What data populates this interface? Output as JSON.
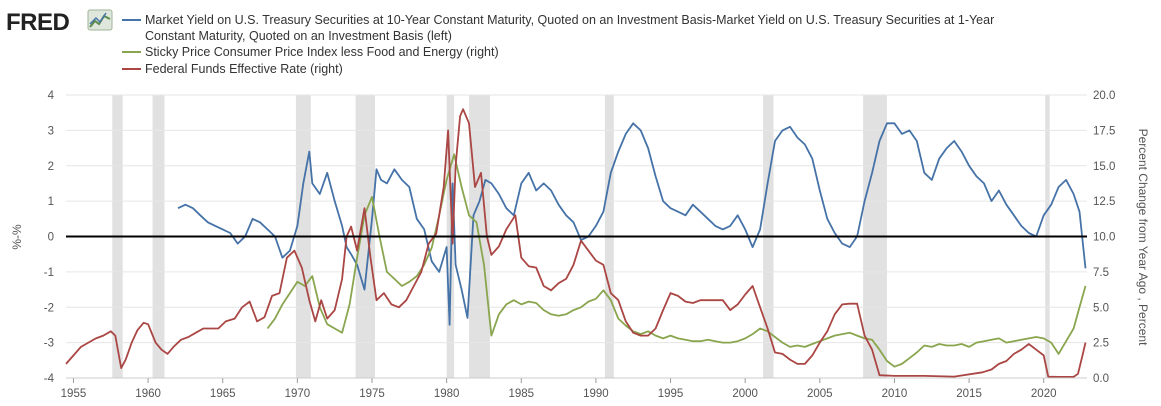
{
  "logo": {
    "text": "FRED",
    "mark": "fred-chart-logo-icon"
  },
  "colors": {
    "spread": "#4572a7",
    "sticky_cpi": "#89a54e",
    "fed_funds": "#aa4643",
    "recession": "#e1e1e1",
    "zero_line": "#000000"
  },
  "chart_data": {
    "type": "line",
    "legend": {
      "placement": "top",
      "entries": [
        {
          "key": "spread",
          "lines": [
            "Market Yield on U.S. Treasury Securities at 10-Year Constant Maturity, Quoted on an Investment Basis-Market Yield on U.S. Treasury Securities at 1-Year",
            "Constant Maturity, Quoted on an Investment Basis (left)"
          ]
        },
        {
          "key": "sticky_cpi",
          "lines": [
            "Sticky Price Consumer Price Index less Food and Energy (right)"
          ]
        },
        {
          "key": "fed_funds",
          "lines": [
            "Federal Funds Effective Rate (right)"
          ]
        }
      ]
    },
    "x_axis": {
      "range": [
        1954.5,
        2022.9
      ],
      "ticks": [
        "1955",
        "1960",
        "1965",
        "1970",
        "1975",
        "1980",
        "1985",
        "1990",
        "1995",
        "2000",
        "2005",
        "2010",
        "2015",
        "2020"
      ]
    },
    "y_left": {
      "label": "%-%",
      "range": [
        -4,
        4
      ],
      "ticks": [
        "4",
        "3",
        "2",
        "1",
        "0",
        "-1",
        "-2",
        "-3",
        "-4"
      ]
    },
    "y_right": {
      "label": "Percent Change from Year Ago , Percent",
      "range": [
        0,
        20
      ],
      "ticks": [
        "20.0",
        "17.5",
        "15.0",
        "12.5",
        "10.0",
        "7.5",
        "5.0",
        "2.5",
        "0.0"
      ]
    },
    "grid": "horizontal",
    "zero_line": 0,
    "recessions": [
      [
        1957.6,
        1958.3
      ],
      [
        1960.3,
        1961.1
      ],
      [
        1969.9,
        1970.9
      ],
      [
        1973.9,
        1975.2
      ],
      [
        1980.0,
        1980.5
      ],
      [
        1981.5,
        1982.9
      ],
      [
        1990.6,
        1991.2
      ],
      [
        2001.2,
        2001.9
      ],
      [
        2007.9,
        2009.5
      ],
      [
        2020.1,
        2020.4
      ]
    ],
    "series": [
      {
        "name": "Market Yield on U.S. Treasury Securities at 10-Year Constant Maturity, Quoted on an Investment Basis-Market Yield on U.S. Treasury Securities at 1-Year Constant Maturity, Quoted on an Investment Basis",
        "axis": "left",
        "x": [
          1962.0,
          1962.5,
          1963.0,
          1963.5,
          1964.0,
          1964.5,
          1965.0,
          1965.5,
          1966.0,
          1966.5,
          1967.0,
          1967.5,
          1968.0,
          1968.5,
          1969.0,
          1969.5,
          1970.0,
          1970.4,
          1970.8,
          1971.0,
          1971.5,
          1972.0,
          1972.5,
          1973.0,
          1973.3,
          1973.6,
          1974.0,
          1974.5,
          1975.0,
          1975.3,
          1975.6,
          1976.0,
          1976.5,
          1977.0,
          1977.5,
          1978.0,
          1978.5,
          1979.0,
          1979.5,
          1980.0,
          1980.2,
          1980.4,
          1980.6,
          1981.0,
          1981.4,
          1981.8,
          1982.2,
          1982.6,
          1983.0,
          1983.5,
          1984.0,
          1984.5,
          1985.0,
          1985.5,
          1986.0,
          1986.5,
          1987.0,
          1987.5,
          1988.0,
          1988.5,
          1989.0,
          1989.5,
          1990.0,
          1990.5,
          1991.0,
          1991.5,
          1992.0,
          1992.5,
          1993.0,
          1993.5,
          1994.0,
          1994.5,
          1995.0,
          1995.5,
          1996.0,
          1996.5,
          1997.0,
          1997.5,
          1998.0,
          1998.5,
          1999.0,
          1999.5,
          2000.0,
          2000.5,
          2001.0,
          2001.5,
          2002.0,
          2002.5,
          2003.0,
          2003.5,
          2004.0,
          2004.5,
          2005.0,
          2005.5,
          2006.0,
          2006.5,
          2007.0,
          2007.5,
          2008.0,
          2008.5,
          2009.0,
          2009.5,
          2010.0,
          2010.5,
          2011.0,
          2011.5,
          2012.0,
          2012.5,
          2013.0,
          2013.5,
          2014.0,
          2014.5,
          2015.0,
          2015.5,
          2016.0,
          2016.5,
          2017.0,
          2017.5,
          2018.0,
          2018.5,
          2019.0,
          2019.5,
          2020.0,
          2020.5,
          2021.0,
          2021.5,
          2022.0,
          2022.4,
          2022.8
        ],
        "values": [
          0.8,
          0.9,
          0.8,
          0.6,
          0.4,
          0.3,
          0.2,
          0.1,
          -0.2,
          0.0,
          0.5,
          0.4,
          0.2,
          0.0,
          -0.6,
          -0.4,
          0.3,
          1.5,
          2.4,
          1.5,
          1.2,
          1.8,
          1.0,
          0.3,
          -0.3,
          -0.5,
          -0.8,
          -1.5,
          0.5,
          1.9,
          1.6,
          1.5,
          1.9,
          1.6,
          1.4,
          0.5,
          0.2,
          -0.7,
          -1.0,
          -0.3,
          -2.5,
          1.5,
          -0.8,
          -1.5,
          -2.3,
          0.6,
          1.0,
          1.6,
          1.5,
          1.2,
          0.8,
          0.6,
          1.5,
          1.8,
          1.3,
          1.5,
          1.3,
          0.9,
          0.6,
          0.4,
          -0.1,
          0.0,
          0.3,
          0.7,
          1.8,
          2.4,
          2.9,
          3.2,
          3.0,
          2.5,
          1.7,
          1.0,
          0.8,
          0.7,
          0.6,
          0.9,
          0.7,
          0.5,
          0.3,
          0.2,
          0.3,
          0.6,
          0.2,
          -0.3,
          0.2,
          1.5,
          2.7,
          3.0,
          3.1,
          2.8,
          2.6,
          2.2,
          1.3,
          0.5,
          0.1,
          -0.2,
          -0.3,
          0.0,
          1.0,
          1.8,
          2.7,
          3.2,
          3.2,
          2.9,
          3.0,
          2.7,
          1.8,
          1.6,
          2.2,
          2.5,
          2.7,
          2.4,
          2.0,
          1.7,
          1.5,
          1.0,
          1.3,
          0.9,
          0.6,
          0.3,
          0.1,
          0.0,
          0.6,
          0.9,
          1.4,
          1.6,
          1.2,
          0.7,
          -0.9
        ]
      },
      {
        "name": "Sticky Price Consumer Price Index less Food and Energy",
        "axis": "right",
        "x": [
          1968.0,
          1968.5,
          1969.0,
          1969.5,
          1970.0,
          1970.5,
          1971.0,
          1971.5,
          1972.0,
          1972.5,
          1973.0,
          1973.5,
          1974.0,
          1974.5,
          1975.0,
          1975.5,
          1976.0,
          1976.5,
          1977.0,
          1977.5,
          1978.0,
          1978.5,
          1979.0,
          1979.5,
          1980.0,
          1980.5,
          1981.0,
          1981.5,
          1982.0,
          1982.5,
          1983.0,
          1983.5,
          1984.0,
          1984.5,
          1985.0,
          1985.5,
          1986.0,
          1986.5,
          1987.0,
          1987.5,
          1988.0,
          1988.5,
          1989.0,
          1989.5,
          1990.0,
          1990.5,
          1991.0,
          1991.5,
          1992.0,
          1992.5,
          1993.0,
          1993.5,
          1994.0,
          1994.5,
          1995.0,
          1995.5,
          1996.0,
          1996.5,
          1997.0,
          1997.5,
          1998.0,
          1998.5,
          1999.0,
          1999.5,
          2000.0,
          2000.5,
          2001.0,
          2001.5,
          2002.0,
          2002.5,
          2003.0,
          2003.5,
          2004.0,
          2004.5,
          2005.0,
          2005.5,
          2006.0,
          2006.5,
          2007.0,
          2007.5,
          2008.0,
          2008.5,
          2009.0,
          2009.5,
          2010.0,
          2010.5,
          2011.0,
          2011.5,
          2012.0,
          2012.5,
          2013.0,
          2013.5,
          2014.0,
          2014.5,
          2015.0,
          2015.5,
          2016.0,
          2016.5,
          2017.0,
          2017.5,
          2018.0,
          2018.5,
          2019.0,
          2019.5,
          2020.0,
          2020.5,
          2021.0,
          2021.5,
          2022.0,
          2022.4,
          2022.8
        ],
        "values": [
          3.5,
          4.2,
          5.2,
          6.0,
          6.8,
          6.5,
          7.2,
          5.0,
          3.8,
          3.5,
          3.2,
          5.2,
          8.5,
          11.5,
          12.8,
          10.0,
          7.5,
          7.0,
          6.5,
          6.8,
          7.2,
          8.0,
          9.2,
          11.5,
          14.0,
          15.8,
          13.5,
          11.5,
          11.0,
          8.0,
          3.0,
          4.5,
          5.2,
          5.5,
          5.2,
          5.4,
          5.3,
          4.8,
          4.5,
          4.4,
          4.5,
          4.8,
          5.0,
          5.4,
          5.6,
          6.2,
          5.5,
          4.2,
          3.7,
          3.3,
          3.1,
          3.3,
          3.0,
          2.8,
          3.0,
          2.8,
          2.7,
          2.6,
          2.6,
          2.7,
          2.6,
          2.5,
          2.5,
          2.6,
          2.8,
          3.1,
          3.5,
          3.3,
          2.9,
          2.5,
          2.2,
          2.3,
          2.2,
          2.4,
          2.6,
          2.8,
          3.0,
          3.1,
          3.2,
          3.0,
          2.8,
          2.7,
          2.0,
          1.2,
          0.8,
          1.0,
          1.4,
          1.8,
          2.3,
          2.2,
          2.4,
          2.3,
          2.3,
          2.4,
          2.2,
          2.5,
          2.6,
          2.7,
          2.8,
          2.5,
          2.6,
          2.7,
          2.8,
          2.9,
          2.8,
          2.5,
          1.7,
          2.6,
          3.5,
          5.0,
          6.5
        ]
      },
      {
        "name": "Federal Funds Effective Rate",
        "axis": "right",
        "x": [
          1954.5,
          1955.0,
          1955.5,
          1956.0,
          1956.5,
          1957.0,
          1957.5,
          1957.8,
          1958.2,
          1958.5,
          1958.9,
          1959.3,
          1959.7,
          1960.0,
          1960.5,
          1960.9,
          1961.3,
          1961.7,
          1962.2,
          1962.7,
          1963.2,
          1963.7,
          1964.2,
          1964.7,
          1965.2,
          1965.8,
          1966.3,
          1966.8,
          1967.3,
          1967.8,
          1968.3,
          1968.8,
          1969.3,
          1969.8,
          1970.3,
          1970.8,
          1971.2,
          1971.6,
          1972.0,
          1972.5,
          1973.0,
          1973.3,
          1973.6,
          1974.0,
          1974.5,
          1974.9,
          1975.3,
          1975.8,
          1976.3,
          1976.8,
          1977.3,
          1977.8,
          1978.3,
          1978.8,
          1979.3,
          1979.8,
          1980.1,
          1980.4,
          1980.6,
          1980.9,
          1981.1,
          1981.5,
          1981.9,
          1982.3,
          1982.7,
          1983.0,
          1983.5,
          1984.0,
          1984.6,
          1985.0,
          1985.5,
          1986.0,
          1986.5,
          1987.0,
          1987.5,
          1988.0,
          1988.5,
          1989.0,
          1989.5,
          1990.0,
          1990.5,
          1991.0,
          1991.5,
          1992.0,
          1992.5,
          1993.0,
          1993.5,
          1994.0,
          1994.5,
          1995.0,
          1995.5,
          1996.0,
          1996.5,
          1997.0,
          1997.5,
          1998.0,
          1998.5,
          1999.0,
          1999.5,
          2000.0,
          2000.5,
          2001.0,
          2001.5,
          2002.0,
          2002.5,
          2003.0,
          2003.5,
          2004.0,
          2004.5,
          2005.0,
          2005.5,
          2006.0,
          2006.5,
          2007.0,
          2007.5,
          2008.0,
          2008.5,
          2009.0,
          2010.0,
          2012.0,
          2014.0,
          2015.9,
          2016.5,
          2017.0,
          2017.5,
          2018.0,
          2018.5,
          2019.0,
          2019.5,
          2020.0,
          2020.3,
          2021.0,
          2022.0,
          2022.3,
          2022.6,
          2022.8
        ],
        "values": [
          1.0,
          1.6,
          2.2,
          2.5,
          2.8,
          3.0,
          3.3,
          3.0,
          0.7,
          1.3,
          2.5,
          3.4,
          3.9,
          3.8,
          2.5,
          2.0,
          1.7,
          2.2,
          2.7,
          2.9,
          3.2,
          3.5,
          3.5,
          3.5,
          4.0,
          4.2,
          5.0,
          5.4,
          4.0,
          4.3,
          5.8,
          6.0,
          8.5,
          9.0,
          7.8,
          5.5,
          4.0,
          5.5,
          4.2,
          4.8,
          7.0,
          10.0,
          10.7,
          9.0,
          12.0,
          8.5,
          5.5,
          6.0,
          5.2,
          5.0,
          5.5,
          6.5,
          7.5,
          9.5,
          10.2,
          13.5,
          17.5,
          9.5,
          15.0,
          18.5,
          19.0,
          18.0,
          13.5,
          14.5,
          10.0,
          8.7,
          9.3,
          10.5,
          11.5,
          8.5,
          7.9,
          7.8,
          6.5,
          6.2,
          6.7,
          7.0,
          8.0,
          9.7,
          9.0,
          8.3,
          8.0,
          6.0,
          5.5,
          4.0,
          3.2,
          3.0,
          3.0,
          3.5,
          4.8,
          6.0,
          5.8,
          5.4,
          5.3,
          5.5,
          5.5,
          5.5,
          5.5,
          4.8,
          5.2,
          5.9,
          6.5,
          5.0,
          3.5,
          1.8,
          1.7,
          1.3,
          1.0,
          1.0,
          1.6,
          2.5,
          3.3,
          4.5,
          5.2,
          5.25,
          5.25,
          3.0,
          2.0,
          0.2,
          0.15,
          0.15,
          0.1,
          0.4,
          0.6,
          1.0,
          1.2,
          1.7,
          2.0,
          2.4,
          2.0,
          1.6,
          0.1,
          0.08,
          0.08,
          0.3,
          1.6,
          2.5
        ]
      }
    ]
  }
}
